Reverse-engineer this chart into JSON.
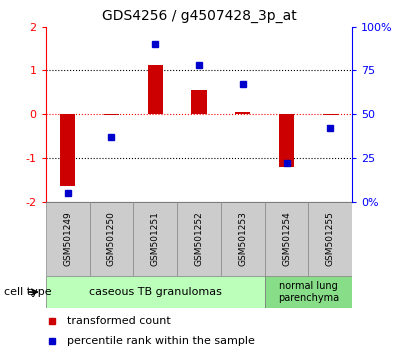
{
  "title": "GDS4256 / g4507428_3p_at",
  "samples": [
    "GSM501249",
    "GSM501250",
    "GSM501251",
    "GSM501252",
    "GSM501253",
    "GSM501254",
    "GSM501255"
  ],
  "transformed_count": [
    -1.65,
    -0.02,
    1.12,
    0.55,
    0.05,
    -1.2,
    -0.02
  ],
  "percentile_rank": [
    5,
    37,
    90,
    78,
    67,
    22,
    42
  ],
  "ylim_left": [
    -2,
    2
  ],
  "ylim_right": [
    0,
    100
  ],
  "yticks_left": [
    -2,
    -1,
    0,
    1,
    2
  ],
  "yticks_right": [
    0,
    25,
    50,
    75,
    100
  ],
  "ytick_labels_right": [
    "0%",
    "25",
    "50",
    "75",
    "100%"
  ],
  "bar_color": "#cc0000",
  "dot_color": "#0000cc",
  "n_group1": 5,
  "n_group2": 2,
  "group1_label": "caseous TB granulomas",
  "group2_label": "normal lung\nparenchyma",
  "group1_color": "#bbffbb",
  "group2_color": "#88dd88",
  "cell_type_label": "cell type",
  "legend_bar_label": "transformed count",
  "legend_dot_label": "percentile rank within the sample",
  "sample_box_color": "#cccccc",
  "bg_color": "#ffffff",
  "title_fontsize": 10,
  "tick_fontsize": 8,
  "sample_fontsize": 6.5,
  "cell_fontsize": 8,
  "legend_fontsize": 8
}
